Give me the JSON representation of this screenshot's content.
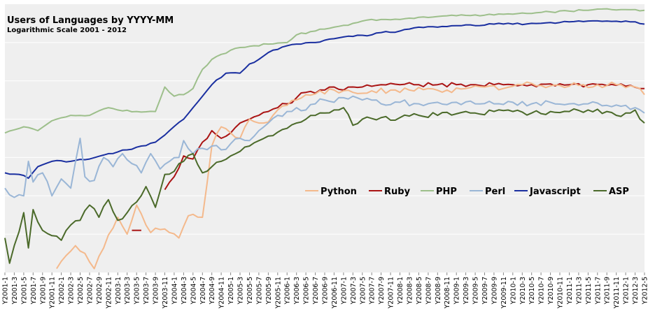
{
  "chart_data": {
    "type": "line",
    "title": "Users of Languages by YYYY-MM",
    "subtitle": "Logarithmic Scale  2001 - 2012",
    "xlabel": "",
    "ylabel": "",
    "log_scale": true,
    "grid": true,
    "legend_position": "right, middle",
    "y_note": "No y tick labels are printed; values are relative log10 levels estimated from the plot (gridlines assumed at 0.5 spacing).",
    "ylim": [
      0.0,
      3.5
    ],
    "x_tick_labels": [
      "Y2001-1",
      "Y2001-3",
      "Y2001-5",
      "Y2001-7",
      "Y2001-9",
      "Y2001-11",
      "Y2002-1",
      "Y2002-3",
      "Y2002-5",
      "Y2002-7",
      "Y2002-9",
      "Y2002-11",
      "Y2003-1",
      "Y2003-3",
      "Y2003-5",
      "Y2003-7",
      "Y2003-9",
      "Y2003-11",
      "Y2004-1",
      "Y2004-3",
      "Y2004-5",
      "Y2004-7",
      "Y2004-9",
      "Y2004-11",
      "Y2005-1",
      "Y2005-3",
      "Y2005-5",
      "Y2005-7",
      "Y2005-9",
      "Y2005-11",
      "Y2006-1",
      "Y2006-3",
      "Y2006-5",
      "Y2006-7",
      "Y2006-9",
      "Y2006-11",
      "Y2007-1",
      "Y2007-3",
      "Y2007-5",
      "Y2007-7",
      "Y2007-9",
      "Y2007-11",
      "Y2008-1",
      "Y2008-3",
      "Y2008-5",
      "Y2008-7",
      "Y2008-9",
      "Y2008-11",
      "Y2009-1",
      "Y2009-3",
      "Y2009-5",
      "Y2009-7",
      "Y2009-9",
      "Y2009-11",
      "Y2010-1",
      "Y2010-3",
      "Y2010-5",
      "Y2010-7",
      "Y2010-9",
      "Y2010-11",
      "Y2011-1",
      "Y2011-3",
      "Y2011-5",
      "Y2011-7",
      "Y2011-9",
      "Y2011-11",
      "Y2012-1",
      "Y2012-3",
      "Y2012-5"
    ],
    "series": [
      {
        "name": "PHP",
        "color": "#9dbf8b",
        "knots": [
          [
            0,
            1.82
          ],
          [
            4,
            1.9
          ],
          [
            7,
            1.85
          ],
          [
            10,
            1.98
          ],
          [
            14,
            2.05
          ],
          [
            18,
            2.05
          ],
          [
            22,
            2.15
          ],
          [
            24,
            2.12
          ],
          [
            28,
            2.1
          ],
          [
            32,
            2.1
          ],
          [
            34,
            2.42
          ],
          [
            36,
            2.3
          ],
          [
            38,
            2.32
          ],
          [
            40,
            2.4
          ],
          [
            42,
            2.65
          ],
          [
            44,
            2.78
          ],
          [
            48,
            2.9
          ],
          [
            52,
            2.95
          ],
          [
            56,
            2.98
          ],
          [
            60,
            3.0
          ],
          [
            62,
            3.1
          ],
          [
            66,
            3.15
          ],
          [
            70,
            3.2
          ],
          [
            74,
            3.25
          ],
          [
            76,
            3.28
          ],
          [
            80,
            3.3
          ],
          [
            84,
            3.3
          ],
          [
            88,
            3.33
          ],
          [
            92,
            3.34
          ],
          [
            96,
            3.35
          ],
          [
            100,
            3.36
          ],
          [
            104,
            3.36
          ],
          [
            108,
            3.37
          ],
          [
            112,
            3.38
          ],
          [
            116,
            3.4
          ],
          [
            120,
            3.41
          ],
          [
            124,
            3.42
          ],
          [
            128,
            3.44
          ],
          [
            132,
            3.43
          ],
          [
            134,
            3.43
          ],
          [
            136,
            3.42
          ]
        ]
      },
      {
        "name": "Javascript",
        "color": "#1a2fa0",
        "knots": [
          [
            0,
            1.3
          ],
          [
            3,
            1.28
          ],
          [
            5,
            1.23
          ],
          [
            7,
            1.38
          ],
          [
            10,
            1.45
          ],
          [
            14,
            1.45
          ],
          [
            18,
            1.48
          ],
          [
            22,
            1.55
          ],
          [
            26,
            1.6
          ],
          [
            29,
            1.65
          ],
          [
            32,
            1.7
          ],
          [
            35,
            1.85
          ],
          [
            38,
            2.0
          ],
          [
            40,
            2.15
          ],
          [
            42,
            2.3
          ],
          [
            44,
            2.45
          ],
          [
            47,
            2.6
          ],
          [
            50,
            2.6
          ],
          [
            52,
            2.72
          ],
          [
            54,
            2.78
          ],
          [
            57,
            2.9
          ],
          [
            62,
            2.98
          ],
          [
            66,
            3.0
          ],
          [
            70,
            3.05
          ],
          [
            74,
            3.08
          ],
          [
            78,
            3.1
          ],
          [
            80,
            3.13
          ],
          [
            84,
            3.15
          ],
          [
            88,
            3.2
          ],
          [
            92,
            3.2
          ],
          [
            96,
            3.22
          ],
          [
            100,
            3.22
          ],
          [
            104,
            3.24
          ],
          [
            108,
            3.24
          ],
          [
            112,
            3.25
          ],
          [
            116,
            3.26
          ],
          [
            120,
            3.27
          ],
          [
            124,
            3.28
          ],
          [
            128,
            3.28
          ],
          [
            132,
            3.28
          ],
          [
            134,
            3.27
          ],
          [
            136,
            3.24
          ]
        ]
      },
      {
        "name": "Ruby",
        "color": "#aa1414",
        "knots": [
          [
            34,
            1.08
          ],
          [
            36,
            1.25
          ],
          [
            38,
            1.52
          ],
          [
            40,
            1.48
          ],
          [
            42,
            1.7
          ],
          [
            44,
            1.85
          ],
          [
            46,
            1.75
          ],
          [
            48,
            1.82
          ],
          [
            50,
            1.95
          ],
          [
            52,
            2.0
          ],
          [
            54,
            2.05
          ],
          [
            56,
            2.1
          ],
          [
            58,
            2.15
          ],
          [
            60,
            2.2
          ],
          [
            62,
            2.28
          ],
          [
            64,
            2.35
          ],
          [
            66,
            2.34
          ],
          [
            68,
            2.38
          ],
          [
            70,
            2.42
          ],
          [
            72,
            2.38
          ],
          [
            74,
            2.42
          ],
          [
            76,
            2.42
          ],
          [
            80,
            2.45
          ],
          [
            84,
            2.45
          ],
          [
            88,
            2.45
          ],
          [
            92,
            2.45
          ],
          [
            96,
            2.45
          ],
          [
            100,
            2.45
          ],
          [
            104,
            2.45
          ],
          [
            108,
            2.45
          ],
          [
            112,
            2.45
          ],
          [
            116,
            2.46
          ],
          [
            120,
            2.45
          ],
          [
            124,
            2.45
          ],
          [
            128,
            2.44
          ],
          [
            132,
            2.43
          ],
          [
            136,
            2.4
          ]
        ]
      },
      {
        "name": "Python",
        "color": "#f4b98c",
        "knots": [
          [
            11,
            0.05
          ],
          [
            13,
            0.22
          ],
          [
            15,
            0.35
          ],
          [
            17,
            0.25
          ],
          [
            19,
            0.05
          ],
          [
            21,
            0.32
          ],
          [
            24,
            0.72
          ],
          [
            26,
            0.5
          ],
          [
            28,
            0.88
          ],
          [
            31,
            0.52
          ],
          [
            33,
            0.56
          ],
          [
            35,
            0.52
          ],
          [
            37,
            0.45
          ],
          [
            39,
            0.74
          ],
          [
            42,
            0.72
          ],
          [
            44,
            1.65
          ],
          [
            46,
            1.9
          ],
          [
            48,
            1.82
          ],
          [
            50,
            1.75
          ],
          [
            52,
            2.0
          ],
          [
            55,
            1.95
          ],
          [
            57,
            2.05
          ],
          [
            60,
            2.18
          ],
          [
            62,
            2.25
          ],
          [
            66,
            2.33
          ],
          [
            70,
            2.38
          ],
          [
            74,
            2.35
          ],
          [
            78,
            2.37
          ],
          [
            82,
            2.38
          ],
          [
            86,
            2.38
          ],
          [
            90,
            2.4
          ],
          [
            94,
            2.38
          ],
          [
            98,
            2.4
          ],
          [
            102,
            2.42
          ],
          [
            106,
            2.4
          ],
          [
            110,
            2.45
          ],
          [
            114,
            2.44
          ],
          [
            118,
            2.44
          ],
          [
            122,
            2.44
          ],
          [
            126,
            2.45
          ],
          [
            130,
            2.45
          ],
          [
            134,
            2.42
          ],
          [
            136,
            2.32
          ]
        ]
      },
      {
        "name": "Perl",
        "color": "#9ab6d6",
        "knots": [
          [
            0,
            1.1
          ],
          [
            2,
            0.98
          ],
          [
            4,
            1.0
          ],
          [
            5,
            1.45
          ],
          [
            6,
            1.18
          ],
          [
            8,
            1.3
          ],
          [
            10,
            1.0
          ],
          [
            12,
            1.22
          ],
          [
            14,
            1.1
          ],
          [
            16,
            1.75
          ],
          [
            17,
            1.25
          ],
          [
            19,
            1.2
          ],
          [
            21,
            1.5
          ],
          [
            23,
            1.38
          ],
          [
            25,
            1.55
          ],
          [
            27,
            1.42
          ],
          [
            29,
            1.3
          ],
          [
            31,
            1.55
          ],
          [
            33,
            1.35
          ],
          [
            35,
            1.45
          ],
          [
            37,
            1.5
          ],
          [
            38,
            1.72
          ],
          [
            40,
            1.55
          ],
          [
            42,
            1.62
          ],
          [
            44,
            1.65
          ],
          [
            46,
            1.6
          ],
          [
            48,
            1.68
          ],
          [
            50,
            1.75
          ],
          [
            52,
            1.72
          ],
          [
            54,
            1.85
          ],
          [
            56,
            1.95
          ],
          [
            58,
            2.05
          ],
          [
            60,
            2.1
          ],
          [
            62,
            2.15
          ],
          [
            64,
            2.12
          ],
          [
            66,
            2.2
          ],
          [
            68,
            2.25
          ],
          [
            70,
            2.22
          ],
          [
            72,
            2.28
          ],
          [
            74,
            2.3
          ],
          [
            76,
            2.25
          ],
          [
            80,
            2.2
          ],
          [
            84,
            2.22
          ],
          [
            88,
            2.2
          ],
          [
            92,
            2.22
          ],
          [
            96,
            2.22
          ],
          [
            100,
            2.2
          ],
          [
            104,
            2.2
          ],
          [
            108,
            2.22
          ],
          [
            112,
            2.2
          ],
          [
            116,
            2.22
          ],
          [
            120,
            2.2
          ],
          [
            124,
            2.2
          ],
          [
            128,
            2.18
          ],
          [
            132,
            2.18
          ],
          [
            134,
            2.15
          ],
          [
            136,
            2.08
          ]
        ]
      },
      {
        "name": "ASP",
        "color": "#4b6a2a",
        "knots": [
          [
            0,
            0.45
          ],
          [
            1,
            0.12
          ],
          [
            2,
            0.35
          ],
          [
            4,
            0.78
          ],
          [
            5,
            0.32
          ],
          [
            6,
            0.82
          ],
          [
            8,
            0.55
          ],
          [
            10,
            0.48
          ],
          [
            12,
            0.42
          ],
          [
            14,
            0.62
          ],
          [
            16,
            0.68
          ],
          [
            18,
            0.88
          ],
          [
            20,
            0.72
          ],
          [
            22,
            0.95
          ],
          [
            24,
            0.68
          ],
          [
            26,
            0.78
          ],
          [
            28,
            0.92
          ],
          [
            30,
            1.12
          ],
          [
            32,
            0.85
          ],
          [
            34,
            1.28
          ],
          [
            36,
            1.32
          ],
          [
            38,
            1.45
          ],
          [
            40,
            1.55
          ],
          [
            42,
            1.3
          ],
          [
            44,
            1.38
          ],
          [
            46,
            1.45
          ],
          [
            48,
            1.52
          ],
          [
            50,
            1.58
          ],
          [
            52,
            1.65
          ],
          [
            54,
            1.72
          ],
          [
            56,
            1.78
          ],
          [
            58,
            1.83
          ],
          [
            60,
            1.88
          ],
          [
            62,
            1.95
          ],
          [
            64,
            2.0
          ],
          [
            66,
            2.05
          ],
          [
            68,
            2.08
          ],
          [
            70,
            2.12
          ],
          [
            72,
            2.15
          ],
          [
            74,
            1.92
          ],
          [
            76,
            2.0
          ],
          [
            80,
            2.02
          ],
          [
            84,
            2.02
          ],
          [
            88,
            2.05
          ],
          [
            92,
            2.05
          ],
          [
            96,
            2.07
          ],
          [
            100,
            2.08
          ],
          [
            104,
            2.1
          ],
          [
            108,
            2.1
          ],
          [
            112,
            2.08
          ],
          [
            116,
            2.1
          ],
          [
            120,
            2.1
          ],
          [
            124,
            2.12
          ],
          [
            128,
            2.1
          ],
          [
            130,
            2.05
          ],
          [
            132,
            2.08
          ],
          [
            134,
            2.12
          ],
          [
            136,
            1.95
          ]
        ]
      }
    ]
  }
}
